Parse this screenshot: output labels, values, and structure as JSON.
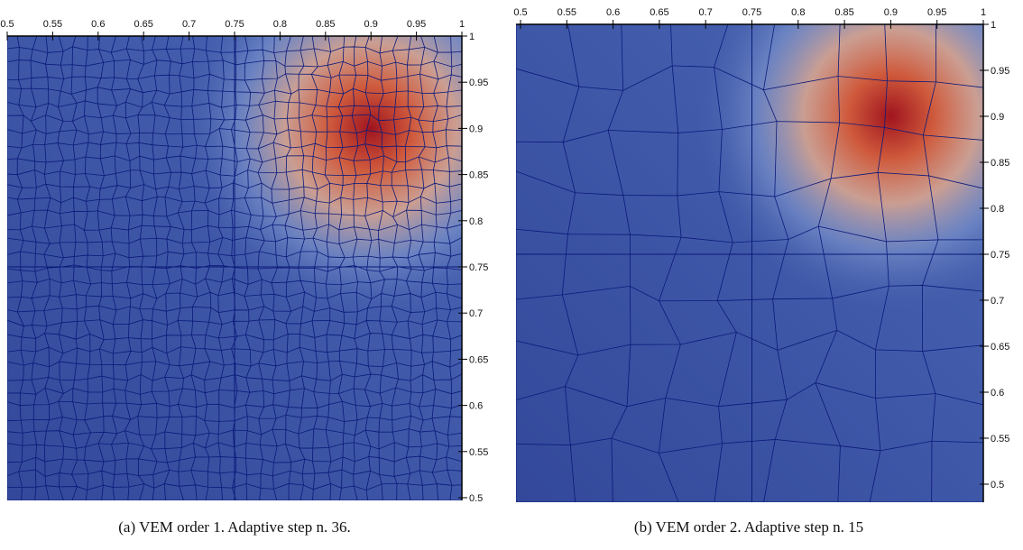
{
  "chart_data": [
    {
      "type": "mesh",
      "caption": "(a) VEM order 1. Adaptive step n. 36.",
      "xlim": [
        0.5,
        1
      ],
      "ylim": [
        0.5,
        1
      ],
      "xticks": [
        0.5,
        0.55,
        0.6,
        0.65,
        0.7,
        0.75,
        0.8,
        0.85,
        0.9,
        0.95,
        1
      ],
      "yticks": [
        0.5,
        0.55,
        0.6,
        0.65,
        0.7,
        0.75,
        0.8,
        0.85,
        0.9,
        0.95,
        1
      ]
    },
    {
      "type": "mesh",
      "caption": "(b) VEM order 2. Adaptive step n. 15",
      "xlim": [
        0.5,
        1
      ],
      "ylim": [
        0.5,
        1
      ],
      "xticks": [
        0.5,
        0.55,
        0.6,
        0.65,
        0.7,
        0.75,
        0.8,
        0.85,
        0.9,
        0.95,
        1
      ],
      "yticks": [
        0.5,
        0.55,
        0.6,
        0.65,
        0.7,
        0.75,
        0.8,
        0.85,
        0.9,
        0.95,
        1
      ]
    }
  ]
}
